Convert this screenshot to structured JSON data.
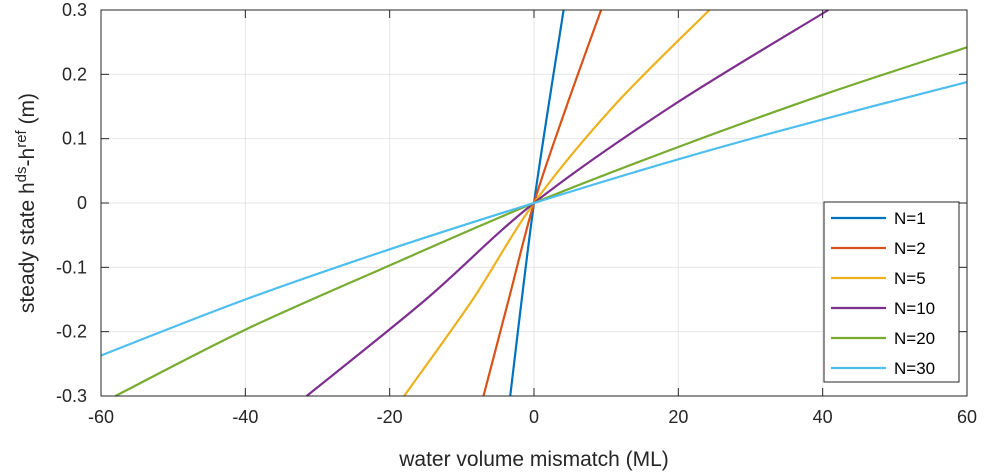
{
  "chart_data": {
    "type": "line",
    "title": "",
    "xlabel": "water volume mismatch (ML)",
    "ylabel": {
      "prefix": "steady state h",
      "sup1": "ds",
      "mid": "-h",
      "sup2": "ref",
      "suffix": " (m)"
    },
    "xlim": [
      -60,
      60
    ],
    "ylim": [
      -0.3,
      0.3
    ],
    "xticks": [
      -60,
      -40,
      -20,
      0,
      20,
      40,
      60
    ],
    "xtick_labels": [
      "-60",
      "-40",
      "-20",
      "0",
      "20",
      "40",
      "60"
    ],
    "yticks": [
      -0.3,
      -0.2,
      -0.1,
      0,
      0.1,
      0.2,
      0.3
    ],
    "ytick_labels": [
      "-0.3",
      "-0.2",
      "-0.1",
      "0",
      "0.1",
      "0.2",
      "0.3"
    ],
    "grid": true,
    "legend_position": "bottom-right",
    "series": [
      {
        "name": "N=1",
        "color": "#0072BD",
        "x": [
          -3.3,
          0,
          4.1
        ],
        "y": [
          -0.3,
          0,
          0.3
        ]
      },
      {
        "name": "N=2",
        "color": "#D95319",
        "x": [
          -7.0,
          -3.5,
          0,
          4.5,
          9.3
        ],
        "y": [
          -0.3,
          -0.15,
          0,
          0.15,
          0.3
        ]
      },
      {
        "name": "N=5",
        "color": "#EDB120",
        "x": [
          -18.0,
          -8.5,
          0,
          11.0,
          24.3
        ],
        "y": [
          -0.3,
          -0.15,
          0,
          0.15,
          0.3
        ]
      },
      {
        "name": "N=10",
        "color": "#7E2F8E",
        "x": [
          -31.5,
          -15.0,
          0,
          19.0,
          40.8
        ],
        "y": [
          -0.3,
          -0.15,
          0,
          0.15,
          0.3
        ]
      },
      {
        "name": "N=20",
        "color": "#77AC30",
        "x": [
          -58.0,
          -40.0,
          -20.0,
          0,
          20.0,
          40.0,
          60.0
        ],
        "y": [
          -0.3,
          -0.197,
          -0.097,
          0,
          0.087,
          0.168,
          0.242
        ]
      },
      {
        "name": "N=30",
        "color": "#4DBEEE",
        "x": [
          -60.0,
          -40.0,
          -20.0,
          0,
          20.0,
          40.0,
          60.0
        ],
        "y": [
          -0.237,
          -0.15,
          -0.072,
          0,
          0.068,
          0.13,
          0.188
        ]
      }
    ]
  }
}
